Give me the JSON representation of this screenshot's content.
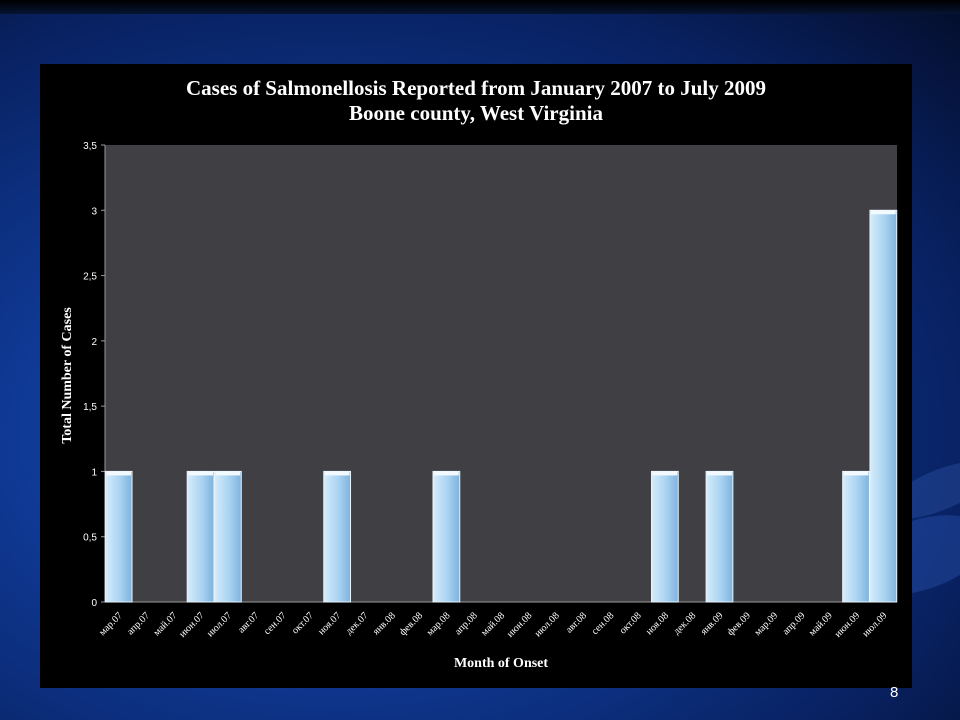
{
  "slide": {
    "page_number": "8"
  },
  "chart_data": {
    "type": "bar",
    "title": "Cases of Salmonellosis Reported from January 2007 to July 2009",
    "subtitle": "Boone county,  West Virginia",
    "xlabel": "Month of Onset",
    "ylabel": "Total Number of Cases",
    "ylim": [
      0,
      3.5
    ],
    "yticks": [
      "0",
      "0,5",
      "1",
      "1,5",
      "2",
      "2,5",
      "3",
      "3,5"
    ],
    "categories": [
      "мар.07",
      "апр.07",
      "май.07",
      "июн.07",
      "июл.07",
      "авг.07",
      "сен.07",
      "окт.07",
      "ноя.07",
      "дек.07",
      "янв.08",
      "фев.08",
      "мар.08",
      "апр.08",
      "май.08",
      "июн.08",
      "июл.08",
      "авг.08",
      "сен.08",
      "окт.08",
      "ноя.08",
      "дек.08",
      "янв.09",
      "фев.09",
      "мар.09",
      "апр.09",
      "май.09",
      "июн.09",
      "июл.09"
    ],
    "values": [
      1,
      0,
      0,
      1,
      1,
      0,
      0,
      0,
      1,
      0,
      0,
      0,
      1,
      0,
      0,
      0,
      0,
      0,
      0,
      0,
      1,
      0,
      1,
      0,
      0,
      0,
      0,
      1,
      3
    ],
    "grid": false,
    "colors": {
      "bar": "#a9d3f2",
      "plot_bg": "#404044",
      "panel_bg": "#000000",
      "text": "#ffffff"
    }
  }
}
